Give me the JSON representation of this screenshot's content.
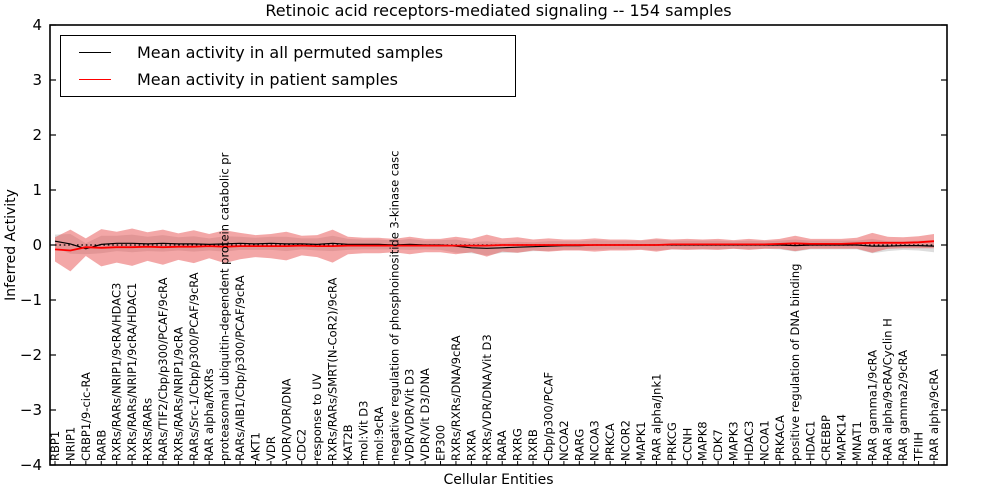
{
  "legend": {
    "items": [
      {
        "id": "permuted",
        "label": "Mean activity in all permuted samples",
        "color": "#000000"
      },
      {
        "id": "patient",
        "label": "Mean activity in patient samples",
        "color": "#ff0000"
      }
    ]
  },
  "chart_data": {
    "type": "line",
    "title": "Retinoic acid receptors-mediated signaling -- 154 samples",
    "xlabel": "Cellular Entities",
    "ylabel": "Inferred Activity",
    "ylim": [
      -4,
      4
    ],
    "yticks": [
      4,
      3,
      2,
      1,
      0,
      -1,
      -2,
      -3,
      -4
    ],
    "grid": false,
    "legend_position": "upper left",
    "x_tick_rotation": 90,
    "categories": [
      "RBP1",
      "NRIP1",
      "CRBP1/9-cic-RA",
      "RARB",
      "RXRs/RARs/NRIP1/9cRA/HDAC3",
      "RXRs/RARs/NRIP1/9cRA/HDAC1",
      "RXRs/RARs",
      "RARs/TIF2/Cbp/p300/PCAF/9cRA",
      "RXRs/RARs/NRIP1/9cRA",
      "RARs/Src-1/Cbp/p300/PCAF/9cRA",
      "RAR alpha/RXRs",
      "proteasomal ubiquitin-dependent protein catabolic pr",
      "RARs/AIB1/Cbp/p300/PCAF/9cRA",
      "AKT1",
      "VDR",
      "VDR/VDR/DNA",
      "CDC2",
      "response to UV",
      "RXRs/RARs/SMRT(N-CoR2)/9cRA",
      "KAT2B",
      "mol:Vit D3",
      "mol:9cRA",
      "negative regulation of phosphoinositide 3-kinase casc",
      "VDR/VDR/Vit D3",
      "VDR/Vit D3/DNA",
      "EP300",
      "RXRs/RXRs/DNA/9cRA",
      "RXRA",
      "RXRs/VDR/DNA/Vit D3",
      "RARA",
      "RXRG",
      "RXRB",
      "Cbp/p300/PCAF",
      "NCOA2",
      "RARG",
      "NCOA3",
      "PRKCA",
      "NCOR2",
      "MAPK1",
      "RAR alpha/Jnk1",
      "PRKCG",
      "CCNH",
      "MAPK8",
      "CDK7",
      "MAPK3",
      "HDAC3",
      "NCOA1",
      "PRKACA",
      "positive regulation of DNA binding",
      "HDAC1",
      "CREBBP",
      "MAPK14",
      "MNAT1",
      "RAR gamma1/9cRA",
      "RAR alpha/9cRA/Cyclin H",
      "RAR gamma2/9cRA",
      "TFIIH",
      "RAR alpha/9cRA"
    ],
    "series": [
      {
        "id": "permuted",
        "name": "Mean activity in all permuted samples",
        "color": "#000000",
        "line_width": 1.2,
        "band_color": "#bbbbbb",
        "band_opacity": 0.5,
        "values": [
          0.07,
          0.02,
          -0.07,
          0.01,
          0.03,
          0.03,
          0.02,
          0.03,
          0.02,
          0.02,
          0.01,
          0.02,
          0.03,
          0.02,
          0.03,
          0.02,
          0.02,
          0.01,
          0.03,
          0.01,
          0.01,
          0.01,
          0,
          0.01,
          0,
          0,
          -0.02,
          -0.05,
          -0.06,
          -0.05,
          -0.04,
          -0.03,
          -0.02,
          -0.01,
          -0.01,
          0,
          0,
          0,
          0,
          0,
          0,
          0,
          0,
          0,
          0,
          0,
          0,
          0,
          -0.01,
          0,
          0,
          0,
          0,
          -0.02,
          -0.02,
          -0.01,
          -0.01,
          -0.02
        ],
        "band_halfwidth": [
          0.12,
          0.18,
          0.1,
          0.16,
          0.14,
          0.16,
          0.13,
          0.15,
          0.12,
          0.14,
          0.11,
          0.14,
          0.12,
          0.11,
          0.12,
          0.13,
          0.1,
          0.11,
          0.14,
          0.1,
          0.09,
          0.09,
          0.08,
          0.1,
          0.08,
          0.09,
          0.12,
          0.1,
          0.13,
          0.09,
          0.1,
          0.08,
          0.09,
          0.08,
          0.08,
          0.09,
          0.08,
          0.08,
          0.08,
          0.1,
          0.08,
          0.08,
          0.08,
          0.08,
          0.07,
          0.08,
          0.07,
          0.08,
          0.11,
          0.08,
          0.08,
          0.08,
          0.08,
          0.13,
          0.09,
          0.08,
          0.09,
          0.11
        ]
      },
      {
        "id": "patient",
        "name": "Mean activity in patient samples",
        "color": "#ff0000",
        "line_width": 1.8,
        "band_color": "#e85050",
        "band_opacity": 0.5,
        "values": [
          -0.08,
          -0.1,
          -0.04,
          -0.05,
          -0.04,
          -0.04,
          -0.03,
          -0.04,
          -0.03,
          -0.03,
          -0.02,
          -0.03,
          -0.02,
          -0.02,
          -0.02,
          -0.02,
          -0.01,
          -0.02,
          -0.02,
          -0.01,
          -0.01,
          -0.01,
          -0.01,
          -0.01,
          -0.01,
          -0.01,
          -0.01,
          -0.01,
          -0.01,
          0,
          0,
          0,
          0,
          0,
          0,
          0,
          0,
          0,
          0,
          0,
          0.01,
          0.01,
          0.01,
          0.01,
          0.01,
          0.01,
          0.01,
          0.02,
          0.03,
          0.02,
          0.02,
          0.02,
          0.03,
          0.04,
          0.04,
          0.04,
          0.05,
          0.07
        ],
        "band_halfwidth": [
          0.22,
          0.38,
          0.16,
          0.34,
          0.28,
          0.34,
          0.26,
          0.32,
          0.24,
          0.3,
          0.22,
          0.3,
          0.24,
          0.2,
          0.22,
          0.26,
          0.18,
          0.2,
          0.3,
          0.16,
          0.14,
          0.14,
          0.12,
          0.16,
          0.12,
          0.12,
          0.16,
          0.12,
          0.2,
          0.12,
          0.14,
          0.1,
          0.12,
          0.1,
          0.1,
          0.12,
          0.1,
          0.1,
          0.09,
          0.12,
          0.09,
          0.1,
          0.09,
          0.1,
          0.08,
          0.1,
          0.08,
          0.09,
          0.14,
          0.09,
          0.09,
          0.09,
          0.1,
          0.18,
          0.11,
          0.1,
          0.11,
          0.13
        ]
      }
    ],
    "zero_line": {
      "style": "dotted",
      "color": "#000000",
      "y": 0
    }
  }
}
